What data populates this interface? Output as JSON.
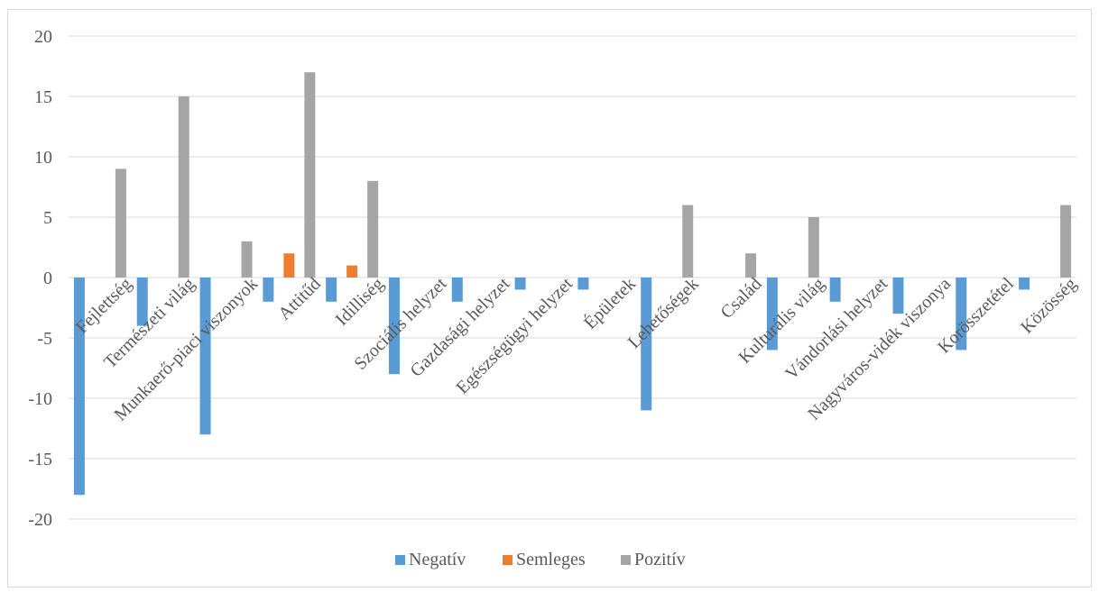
{
  "chart_data": {
    "type": "bar",
    "categories": [
      "Fejlettség",
      "Természeti világ",
      "Munkaerő-piaci viszonyok",
      "Attitűd",
      "Idilliség",
      "Szociális helyzet",
      "Gazdasági helyzet",
      "Egészségügyi helyzet",
      "Épületek",
      "Lehetőségek",
      "Család",
      "Kulturális világ",
      "Vándorlási helyzet",
      "Nagyváros-vidék viszonya",
      "Korösszetétel",
      "Közösség"
    ],
    "series": [
      {
        "name": "Negatív",
        "color": "#5b9bd5",
        "values": [
          -18,
          -4,
          -13,
          -2,
          -2,
          -8,
          -2,
          -1,
          -1,
          -11,
          0,
          -6,
          -2,
          -3,
          -6,
          -1
        ]
      },
      {
        "name": "Semleges",
        "color": "#ed7d31",
        "values": [
          0,
          0,
          0,
          2,
          1,
          0,
          0,
          0,
          0,
          0,
          0,
          0,
          0,
          0,
          0,
          0
        ]
      },
      {
        "name": "Pozitív",
        "color": "#a5a5a5",
        "values": [
          9,
          15,
          3,
          17,
          8,
          0,
          0,
          0,
          0,
          6,
          2,
          5,
          0,
          0,
          0,
          6
        ]
      }
    ],
    "ylim": [
      -20,
      20
    ],
    "yticks": [
      "20",
      "15",
      "10",
      "5",
      "0",
      "-5",
      "-10",
      "-15",
      "-20"
    ],
    "ytick_values": [
      20,
      15,
      10,
      5,
      0,
      -5,
      -10,
      -15,
      -20
    ],
    "grid": true,
    "legend_position": "bottom",
    "gridline_color": "#d9d9d9"
  }
}
